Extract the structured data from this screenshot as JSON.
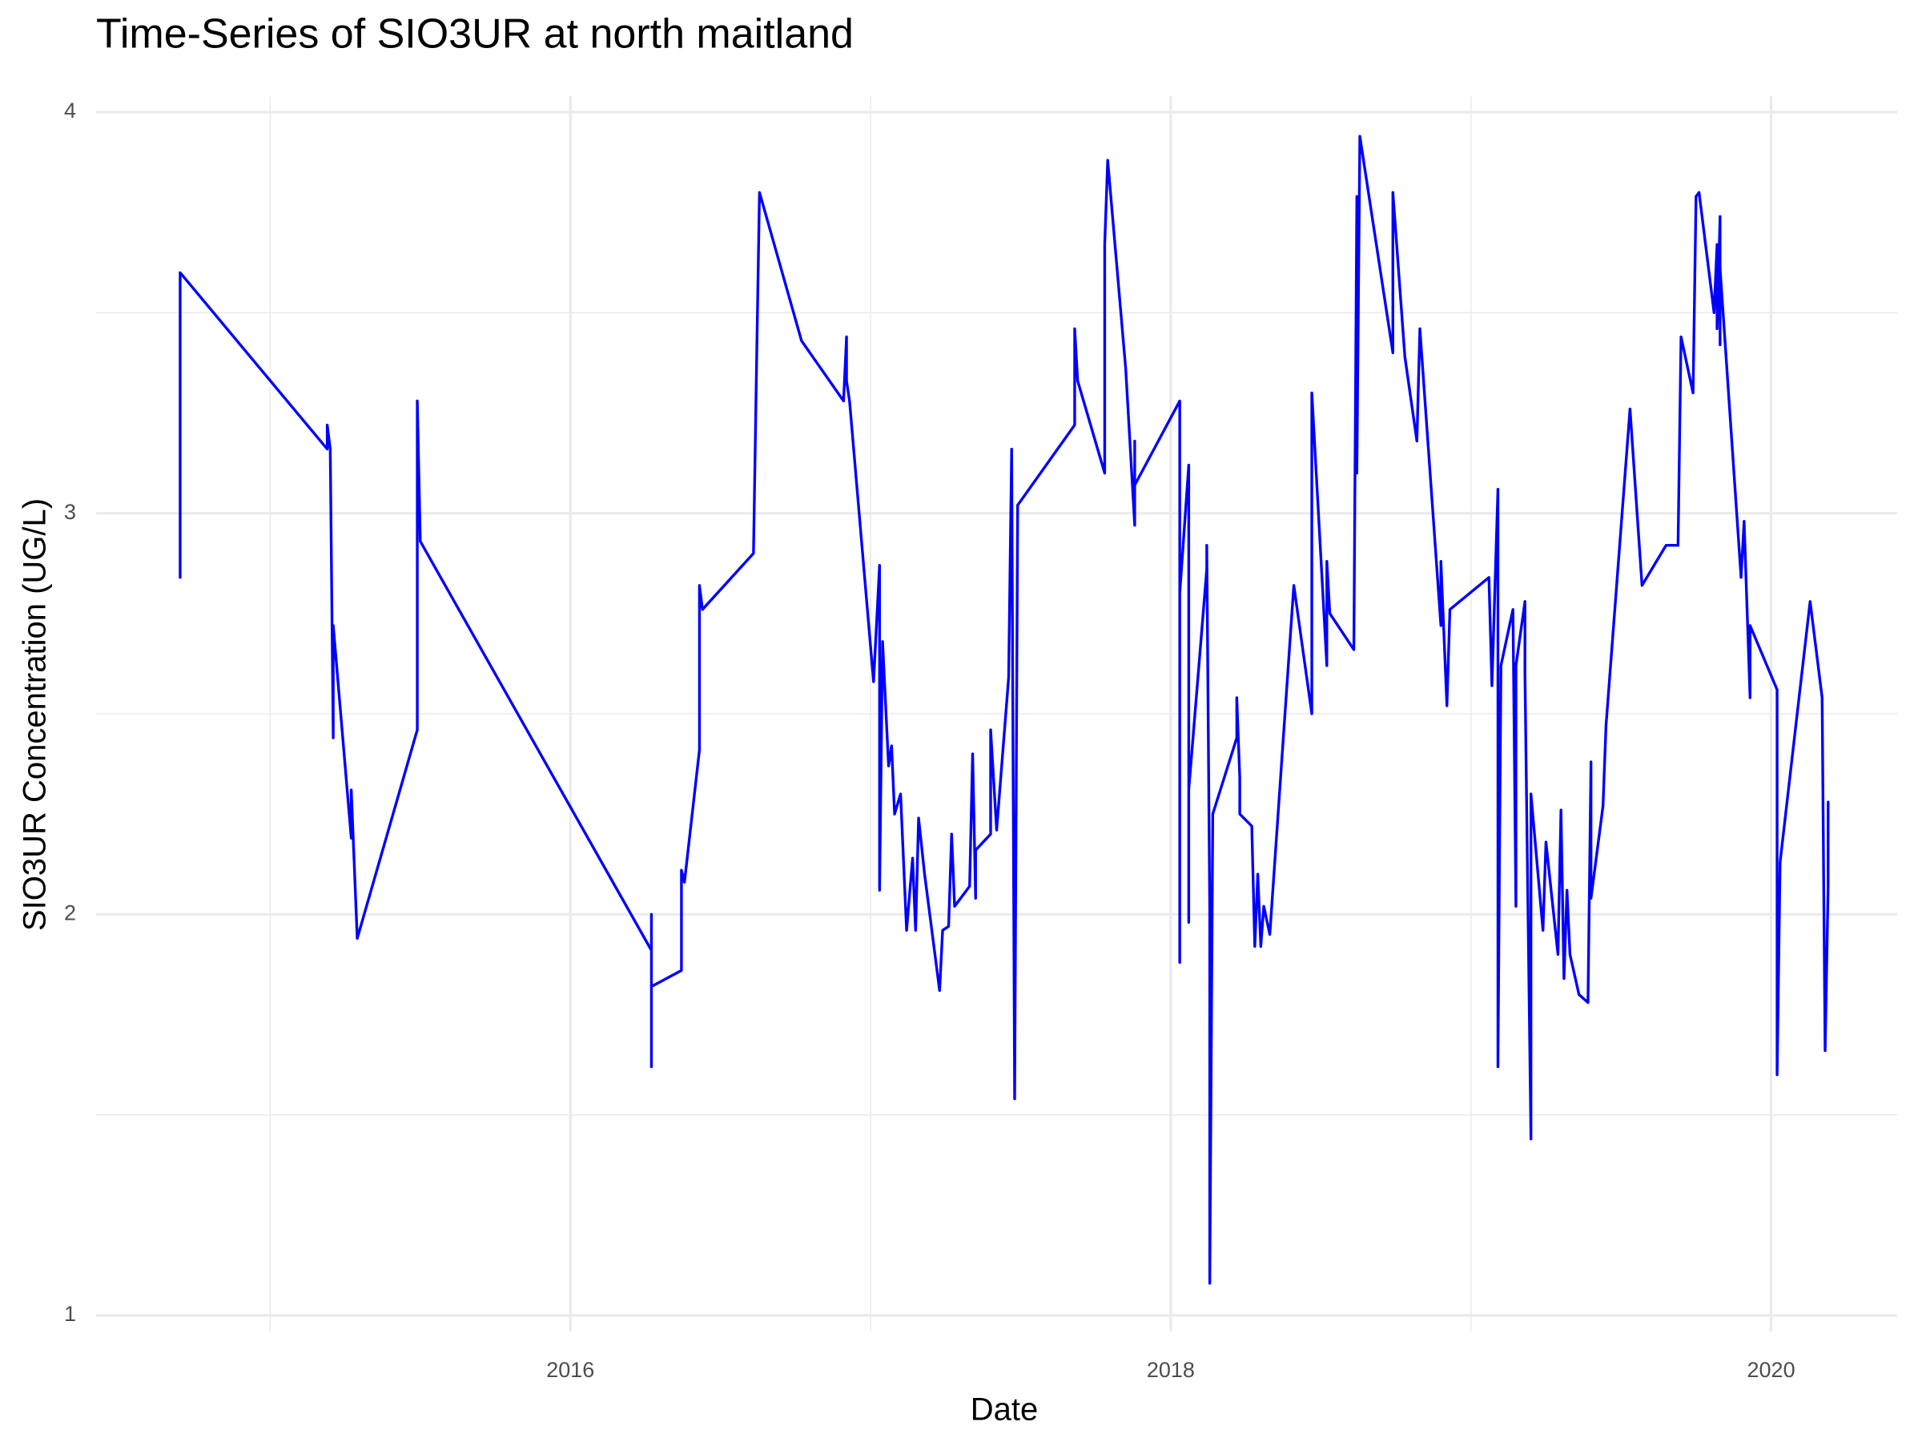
{
  "chart_data": {
    "type": "line",
    "title": "Time-Series of SIO3UR at north maitland",
    "x_label": "Date",
    "y_label": "SIO3UR Concentration (UG/L)",
    "color": "#0000ff",
    "grid": true,
    "xlim": [
      2014.42,
      2020.42
    ],
    "xticks": [
      2016,
      2018,
      2020
    ],
    "xminor": [
      2015,
      2017,
      2019
    ],
    "ylim": [
      0.96,
      4.04
    ],
    "yticks": [
      1,
      2,
      3,
      4
    ],
    "yminor": [
      1.5,
      2.5,
      3.5
    ],
    "x": [
      2014.7,
      2014.7,
      2014.7,
      2015.19,
      2015.19,
      2015.2,
      2015.21,
      2015.21,
      2015.27,
      2015.27,
      2015.29,
      2015.49,
      2015.49,
      2015.5,
      2016.27,
      2016.27,
      2016.27,
      2016.27,
      2016.37,
      2016.37,
      2016.38,
      2016.43,
      2016.43,
      2016.44,
      2016.61,
      2016.62,
      2016.63,
      2016.77,
      2016.91,
      2016.92,
      2016.92,
      2016.93,
      2017.01,
      2017.03,
      2017.03,
      2017.04,
      2017.06,
      2017.07,
      2017.08,
      2017.1,
      2017.12,
      2017.14,
      2017.15,
      2017.16,
      2017.18,
      2017.23,
      2017.24,
      2017.26,
      2017.27,
      2017.28,
      2017.33,
      2017.34,
      2017.35,
      2017.35,
      2017.4,
      2017.4,
      2017.42,
      2017.46,
      2017.47,
      2017.48,
      2017.49,
      2017.68,
      2017.68,
      2017.69,
      2017.78,
      2017.78,
      2017.79,
      2017.85,
      2017.88,
      2017.88,
      2017.88,
      2018.03,
      2018.03,
      2018.03,
      2018.06,
      2018.06,
      2018.06,
      2018.12,
      2018.12,
      2018.13,
      2018.13,
      2018.14,
      2018.22,
      2018.22,
      2018.23,
      2018.23,
      2018.27,
      2018.28,
      2018.29,
      2018.3,
      2018.31,
      2018.33,
      2018.41,
      2018.47,
      2018.47,
      2018.52,
      2018.52,
      2018.53,
      2018.61,
      2018.62,
      2018.62,
      2018.63,
      2018.74,
      2018.74,
      2018.78,
      2018.82,
      2018.83,
      2018.9,
      2018.9,
      2018.92,
      2018.93,
      2019.06,
      2019.07,
      2019.09,
      2019.09,
      2019.1,
      2019.14,
      2019.15,
      2019.15,
      2019.18,
      2019.18,
      2019.2,
      2019.2,
      2019.24,
      2019.25,
      2019.29,
      2019.3,
      2019.31,
      2019.32,
      2019.33,
      2019.36,
      2019.39,
      2019.4,
      2019.4,
      2019.44,
      2019.45,
      2019.53,
      2019.57,
      2019.65,
      2019.69,
      2019.7,
      2019.74,
      2019.75,
      2019.76,
      2019.81,
      2019.82,
      2019.82,
      2019.83,
      2019.83,
      2019.83,
      2019.9,
      2019.91,
      2019.93,
      2019.93,
      2020.02,
      2020.02,
      2020.03,
      2020.13,
      2020.17,
      2020.18,
      2020.19,
      2020.19
    ],
    "values": [
      2.84,
      3.47,
      3.6,
      3.16,
      3.22,
      3.16,
      2.44,
      2.72,
      2.19,
      2.31,
      1.94,
      2.46,
      3.28,
      2.93,
      1.91,
      2.0,
      1.62,
      1.82,
      1.86,
      2.11,
      2.08,
      2.41,
      2.82,
      2.76,
      2.9,
      3.36,
      3.8,
      3.43,
      3.28,
      3.44,
      3.33,
      3.28,
      2.58,
      2.87,
      2.06,
      2.68,
      2.37,
      2.42,
      2.25,
      2.3,
      1.96,
      2.14,
      1.96,
      2.24,
      2.1,
      1.81,
      1.96,
      1.97,
      2.2,
      2.02,
      2.07,
      2.4,
      2.04,
      2.16,
      2.2,
      2.46,
      2.21,
      2.59,
      3.16,
      1.54,
      3.02,
      3.22,
      3.46,
      3.33,
      3.1,
      3.67,
      3.88,
      3.36,
      2.97,
      3.18,
      3.07,
      3.28,
      1.88,
      2.8,
      3.12,
      1.98,
      2.31,
      2.86,
      2.92,
      2.01,
      1.08,
      2.25,
      2.44,
      2.54,
      2.34,
      2.25,
      2.22,
      1.92,
      2.1,
      1.92,
      2.02,
      1.95,
      2.82,
      2.5,
      3.3,
      2.62,
      2.88,
      2.75,
      2.66,
      3.79,
      3.1,
      3.94,
      3.4,
      3.8,
      3.39,
      3.18,
      3.46,
      2.72,
      2.88,
      2.52,
      2.76,
      2.84,
      2.57,
      3.06,
      1.62,
      2.62,
      2.76,
      2.02,
      2.62,
      2.78,
      2.6,
      1.44,
      2.3,
      1.96,
      2.18,
      1.9,
      2.26,
      1.84,
      2.06,
      1.9,
      1.8,
      1.78,
      2.38,
      2.04,
      2.27,
      2.47,
      3.26,
      2.82,
      2.92,
      2.92,
      3.44,
      3.3,
      3.79,
      3.8,
      3.5,
      3.67,
      3.46,
      3.74,
      3.42,
      3.61,
      2.84,
      2.98,
      2.54,
      2.72,
      2.56,
      1.6,
      2.13,
      2.78,
      2.54,
      1.66,
      2.07,
      2.28
    ]
  }
}
